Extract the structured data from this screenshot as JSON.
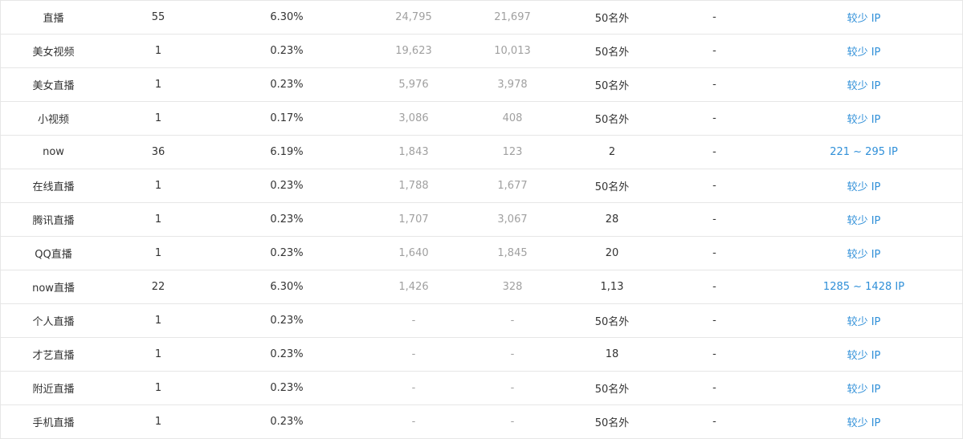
{
  "colors": {
    "link": "#2f8fd8",
    "muted": "#a0a0a0",
    "text": "#333333",
    "border": "#e6e6e6"
  },
  "rows": [
    {
      "keyword": "直播",
      "count": "55",
      "percent": "6.30%",
      "pc": "24,795",
      "mobile": "21,697",
      "rank": "50名外",
      "change": "-",
      "ip": "较少 IP"
    },
    {
      "keyword": "美女视频",
      "count": "1",
      "percent": "0.23%",
      "pc": "19,623",
      "mobile": "10,013",
      "rank": "50名外",
      "change": "-",
      "ip": "较少 IP"
    },
    {
      "keyword": "美女直播",
      "count": "1",
      "percent": "0.23%",
      "pc": "5,976",
      "mobile": "3,978",
      "rank": "50名外",
      "change": "-",
      "ip": "较少 IP"
    },
    {
      "keyword": "小视频",
      "count": "1",
      "percent": "0.17%",
      "pc": "3,086",
      "mobile": "408",
      "rank": "50名外",
      "change": "-",
      "ip": "较少 IP"
    },
    {
      "keyword": "now",
      "count": "36",
      "percent": "6.19%",
      "pc": "1,843",
      "mobile": "123",
      "rank": "2",
      "change": "-",
      "ip": "221 ~ 295 IP"
    },
    {
      "keyword": "在线直播",
      "count": "1",
      "percent": "0.23%",
      "pc": "1,788",
      "mobile": "1,677",
      "rank": "50名外",
      "change": "-",
      "ip": "较少 IP"
    },
    {
      "keyword": "腾讯直播",
      "count": "1",
      "percent": "0.23%",
      "pc": "1,707",
      "mobile": "3,067",
      "rank": "28",
      "change": "-",
      "ip": "较少 IP"
    },
    {
      "keyword": "QQ直播",
      "count": "1",
      "percent": "0.23%",
      "pc": "1,640",
      "mobile": "1,845",
      "rank": "20",
      "change": "-",
      "ip": "较少 IP"
    },
    {
      "keyword": "now直播",
      "count": "22",
      "percent": "6.30%",
      "pc": "1,426",
      "mobile": "328",
      "rank": "1,13",
      "change": "-",
      "ip": "1285 ~ 1428 IP"
    },
    {
      "keyword": "个人直播",
      "count": "1",
      "percent": "0.23%",
      "pc": "-",
      "mobile": "-",
      "rank": "50名外",
      "change": "-",
      "ip": "较少 IP"
    },
    {
      "keyword": "才艺直播",
      "count": "1",
      "percent": "0.23%",
      "pc": "-",
      "mobile": "-",
      "rank": "18",
      "change": "-",
      "ip": "较少 IP"
    },
    {
      "keyword": "附近直播",
      "count": "1",
      "percent": "0.23%",
      "pc": "-",
      "mobile": "-",
      "rank": "50名外",
      "change": "-",
      "ip": "较少 IP"
    },
    {
      "keyword": "手机直播",
      "count": "1",
      "percent": "0.23%",
      "pc": "-",
      "mobile": "-",
      "rank": "50名外",
      "change": "-",
      "ip": "较少 IP"
    }
  ]
}
